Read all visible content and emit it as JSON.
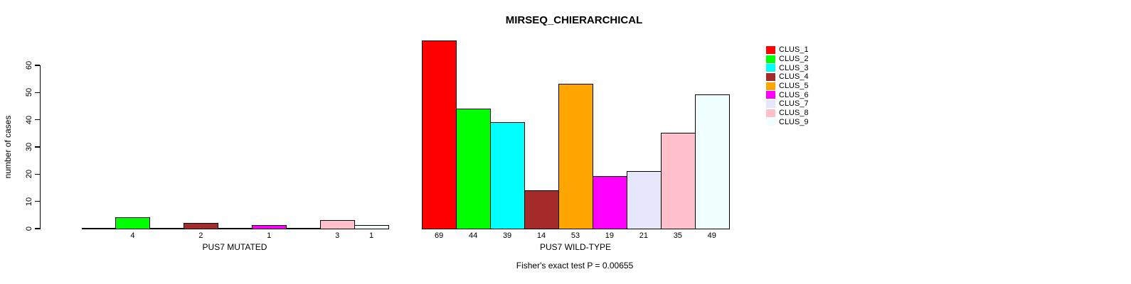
{
  "chart_data": {
    "type": "bar",
    "title": "MIRSEQ_CHIERARCHICAL",
    "ylabel": "number of cases",
    "footnote": "Fisher's exact test P = 0.00655",
    "yticks": [
      0,
      10,
      20,
      30,
      40,
      50,
      60
    ],
    "ylim": [
      0,
      60
    ],
    "grid": false,
    "legend_position": "right-outside",
    "bar_border_color": "#000000",
    "clusters": [
      {
        "name": "CLUS_1",
        "color": "#FF0000"
      },
      {
        "name": "CLUS_2",
        "color": "#00FF00"
      },
      {
        "name": "CLUS_3",
        "color": "#00FFFF"
      },
      {
        "name": "CLUS_4",
        "color": "#A52A2A"
      },
      {
        "name": "CLUS_5",
        "color": "#FFA500"
      },
      {
        "name": "CLUS_6",
        "color": "#FF00FF"
      },
      {
        "name": "CLUS_7",
        "color": "#E6E6FA"
      },
      {
        "name": "CLUS_8",
        "color": "#FFC0CB"
      },
      {
        "name": "CLUS_9",
        "color": "#F0FFFF"
      }
    ],
    "groups": [
      {
        "label": "PUS7 MUTATED",
        "values": [
          0,
          4,
          0,
          2,
          0,
          1,
          0,
          3,
          1
        ]
      },
      {
        "label": "PUS7 WILD-TYPE",
        "values": [
          69,
          44,
          39,
          14,
          53,
          19,
          21,
          35,
          49
        ]
      }
    ]
  }
}
